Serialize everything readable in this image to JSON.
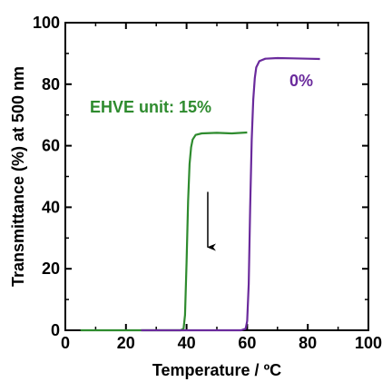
{
  "chart_data": {
    "type": "line",
    "xlabel": "Temperature / ºC",
    "ylabel": "Transmittance (%) at 500 nm",
    "xlim": [
      0,
      100
    ],
    "ylim": [
      0,
      100
    ],
    "xticks": [
      0,
      20,
      40,
      60,
      80,
      100
    ],
    "yticks": [
      0,
      20,
      40,
      60,
      80,
      100
    ],
    "grid": false,
    "legend": "inline",
    "series": [
      {
        "name": "EHVE unit: 15%",
        "color": "#2e8b2e",
        "x": [
          5,
          10,
          20,
          30,
          38,
          39,
          39.5,
          40,
          40.5,
          41,
          41.5,
          42,
          43,
          45,
          50,
          55,
          60
        ],
        "y": [
          0,
          0,
          0,
          0,
          0,
          0.5,
          5,
          22,
          42,
          54,
          59.5,
          62,
          63.5,
          64,
          64.2,
          64,
          64.3
        ]
      },
      {
        "name": "0%",
        "color": "#6a2a9c",
        "x": [
          25,
          30,
          40,
          50,
          58,
          59.5,
          60,
          60.5,
          61,
          61.5,
          62,
          62.5,
          63,
          64,
          66,
          70,
          75,
          80,
          84
        ],
        "y": [
          0,
          0,
          0,
          0,
          0,
          0.5,
          3,
          15,
          40,
          62,
          75,
          82,
          85.5,
          87.5,
          88.3,
          88.5,
          88.4,
          88.3,
          88.2
        ]
      }
    ],
    "annotations": [
      {
        "type": "arrow",
        "x": 47,
        "y_from": 45,
        "y_to": 27
      }
    ]
  }
}
